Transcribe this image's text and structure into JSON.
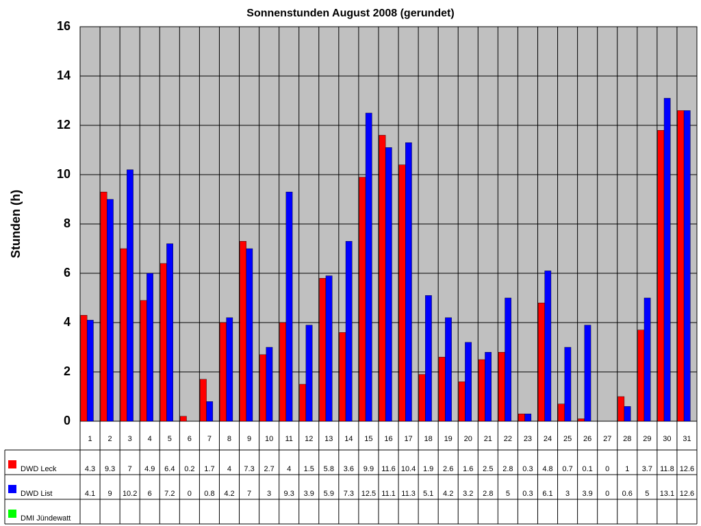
{
  "chart_data": {
    "type": "bar",
    "title": "Sonnenstunden August 2008 (gerundet)",
    "y_label": "Stunden (h)",
    "categories": [
      "1",
      "2",
      "3",
      "4",
      "5",
      "6",
      "7",
      "8",
      "9",
      "10",
      "11",
      "12",
      "13",
      "14",
      "15",
      "16",
      "17",
      "18",
      "19",
      "20",
      "21",
      "22",
      "23",
      "24",
      "25",
      "26",
      "27",
      "28",
      "29",
      "30",
      "31"
    ],
    "series": [
      {
        "name": "DWD Leck",
        "color": "#ff0000",
        "values": [
          4.3,
          9.3,
          7,
          4.9,
          6.4,
          0.2,
          1.7,
          4,
          7.3,
          2.7,
          4,
          1.5,
          5.8,
          3.6,
          9.9,
          11.6,
          10.4,
          1.9,
          2.6,
          1.6,
          2.5,
          2.8,
          0.3,
          4.8,
          0.7,
          0.1,
          0,
          1,
          3.7,
          11.8,
          12.6
        ]
      },
      {
        "name": "DWD List",
        "color": "#0000ff",
        "values": [
          4.1,
          9,
          10.2,
          6,
          7.2,
          0,
          0.8,
          4.2,
          7,
          3,
          9.3,
          3.9,
          5.9,
          7.3,
          12.5,
          11.1,
          11.3,
          5.1,
          4.2,
          3.2,
          2.8,
          5,
          0.3,
          6.1,
          3,
          3.9,
          0,
          0.6,
          5,
          13.1,
          12.6
        ]
      },
      {
        "name": "DMI Jündewatt",
        "color": "#00ff00",
        "values": [
          null,
          null,
          null,
          null,
          null,
          null,
          null,
          null,
          null,
          null,
          null,
          null,
          null,
          null,
          null,
          null,
          null,
          null,
          null,
          null,
          null,
          null,
          null,
          null,
          null,
          null,
          null,
          null,
          null,
          null,
          null
        ]
      }
    ],
    "ylim": [
      0,
      16
    ],
    "yticks": [
      0,
      2,
      4,
      6,
      8,
      10,
      12,
      14,
      16
    ],
    "grid": true,
    "background": "#c0c0c0"
  }
}
